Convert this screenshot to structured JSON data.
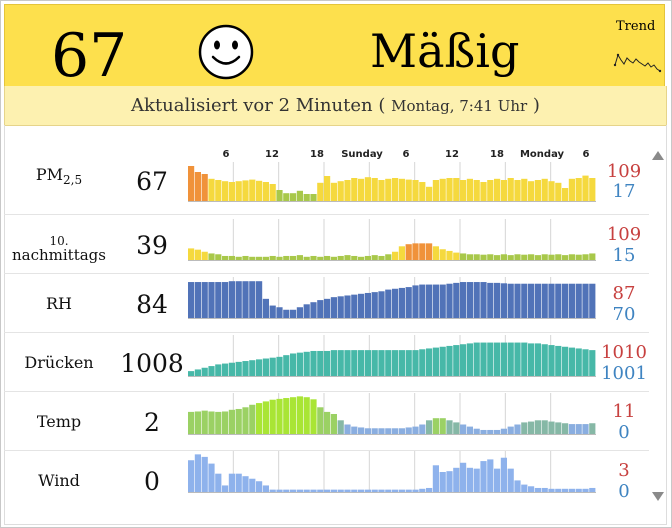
{
  "header": {
    "aqi_value": "67",
    "status": "Mäßig",
    "trend_label": "Trend",
    "face_icon": "smiley-face-icon",
    "bg_color": "#fde04d"
  },
  "updated": {
    "main": "Aktualisiert vor 2 Minuten",
    "open_paren": "(",
    "detail": "Montag, 7:41 Uhr",
    "close_paren": ")"
  },
  "time_axis": {
    "ticks": [
      "6",
      "12",
      "18",
      "Sunday",
      "6",
      "12",
      "18",
      "Monday",
      "6"
    ]
  },
  "rows": [
    {
      "label": "PM",
      "label_sub": "2,5",
      "value": "67",
      "max": "109",
      "min": "17",
      "series": [
        90,
        75,
        70,
        58,
        55,
        52,
        50,
        52,
        54,
        56,
        53,
        50,
        45,
        30,
        22,
        22,
        28,
        20,
        20,
        48,
        65,
        48,
        52,
        55,
        60,
        58,
        62,
        60,
        55,
        58,
        60,
        58,
        56,
        55,
        50,
        38,
        55,
        58,
        60,
        60,
        55,
        58,
        55,
        50,
        55,
        58,
        55,
        60,
        55,
        58,
        52,
        55,
        58,
        52,
        48,
        35,
        58,
        60,
        66,
        60
      ]
    },
    {
      "label": "10.",
      "label2": "nachmittags",
      "value": "39",
      "max": "109",
      "min": "15",
      "series": [
        30,
        27,
        22,
        18,
        16,
        12,
        12,
        10,
        12,
        10,
        10,
        10,
        12,
        10,
        12,
        12,
        14,
        10,
        12,
        10,
        12,
        10,
        12,
        14,
        12,
        10,
        12,
        14,
        12,
        16,
        22,
        35,
        40,
        42,
        42,
        42,
        35,
        28,
        24,
        20,
        18,
        16,
        16,
        15,
        16,
        14,
        16,
        14,
        16,
        15,
        16,
        14,
        16,
        15,
        16,
        14,
        16,
        15,
        16,
        18
      ]
    },
    {
      "label": "RH",
      "value": "84",
      "max": "87",
      "min": "70",
      "series": [
        88,
        88,
        88,
        88,
        88,
        88,
        90,
        90,
        90,
        90,
        90,
        48,
        32,
        28,
        22,
        22,
        28,
        35,
        40,
        45,
        48,
        52,
        54,
        56,
        58,
        60,
        62,
        64,
        66,
        70,
        72,
        74,
        76,
        80,
        82,
        82,
        82,
        82,
        84,
        86,
        88,
        88,
        88,
        88,
        86,
        86,
        85,
        84,
        84,
        84,
        84,
        84,
        84,
        84,
        84,
        84,
        84,
        84,
        84,
        84
      ]
    },
    {
      "label": "Drücken",
      "value": "1008",
      "max": "1010",
      "min": "1001",
      "series": [
        14,
        18,
        22,
        26,
        30,
        32,
        34,
        36,
        38,
        40,
        42,
        44,
        46,
        48,
        52,
        56,
        58,
        60,
        62,
        62,
        62,
        64,
        64,
        64,
        64,
        64,
        64,
        64,
        64,
        64,
        64,
        64,
        64,
        64,
        66,
        68,
        70,
        72,
        74,
        76,
        78,
        80,
        82,
        82,
        82,
        82,
        82,
        82,
        82,
        82,
        80,
        80,
        78,
        76,
        74,
        72,
        70,
        68,
        66,
        64
      ]
    },
    {
      "label": "Temp",
      "value": "2",
      "max": "11",
      "min": "0",
      "series": [
        55,
        56,
        58,
        56,
        55,
        56,
        60,
        62,
        66,
        72,
        76,
        80,
        84,
        86,
        88,
        90,
        92,
        90,
        85,
        66,
        55,
        50,
        35,
        25,
        20,
        18,
        16,
        16,
        16,
        16,
        16,
        16,
        18,
        20,
        25,
        35,
        40,
        40,
        35,
        30,
        25,
        20,
        15,
        12,
        12,
        12,
        15,
        20,
        25,
        30,
        32,
        35,
        35,
        32,
        30,
        28,
        26,
        26,
        26,
        28
      ]
    },
    {
      "label": "Wind",
      "value": "0",
      "max": "3",
      "min": "0",
      "series": [
        78,
        92,
        86,
        70,
        46,
        18,
        46,
        46,
        40,
        34,
        28,
        18,
        8,
        8,
        8,
        8,
        8,
        8,
        8,
        8,
        8,
        8,
        8,
        8,
        8,
        8,
        8,
        8,
        8,
        8,
        8,
        8,
        8,
        8,
        10,
        12,
        66,
        50,
        52,
        60,
        72,
        60,
        58,
        76,
        80,
        58,
        84,
        58,
        30,
        20,
        16,
        12,
        12,
        10,
        10,
        10,
        10,
        10,
        10,
        12
      ]
    }
  ],
  "colors": {
    "red": "#c7403f",
    "blue": "#3f84c1",
    "pm_yellow": "#f5d93e",
    "pm_orange": "#f0923a",
    "pm_green": "#a8c84a",
    "rh_blue": "#5173b8",
    "pressure_teal": "#47b8a8",
    "wind_blue": "#8eb2ec"
  }
}
